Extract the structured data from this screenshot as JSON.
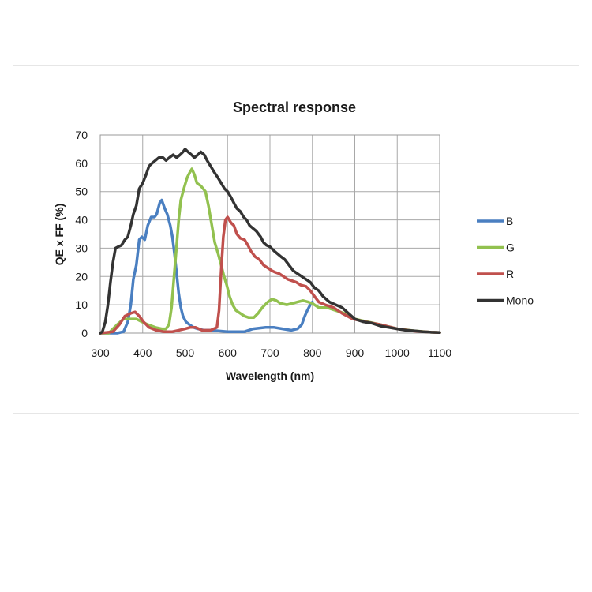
{
  "chart_data": {
    "type": "line",
    "title": "Spectral response",
    "xlabel": "Wavelength (nm)",
    "ylabel": "QE x FF (%)",
    "xlim": [
      300,
      1100
    ],
    "ylim": [
      0,
      70
    ],
    "xticks": [
      300,
      400,
      500,
      600,
      700,
      800,
      900,
      1000,
      1100
    ],
    "yticks": [
      0,
      10,
      20,
      30,
      40,
      50,
      60,
      70
    ],
    "grid": true,
    "legend_position": "right",
    "series": [
      {
        "name": "B",
        "color": "#4a7fc1",
        "points": [
          [
            300,
            0
          ],
          [
            340,
            0
          ],
          [
            355,
            0.5
          ],
          [
            365,
            4
          ],
          [
            372,
            10
          ],
          [
            378,
            19
          ],
          [
            385,
            24
          ],
          [
            392,
            33
          ],
          [
            398,
            34
          ],
          [
            405,
            33
          ],
          [
            412,
            38
          ],
          [
            420,
            41
          ],
          [
            428,
            41
          ],
          [
            433,
            42
          ],
          [
            440,
            46
          ],
          [
            445,
            47
          ],
          [
            452,
            44
          ],
          [
            458,
            42
          ],
          [
            465,
            38
          ],
          [
            470,
            34
          ],
          [
            475,
            28
          ],
          [
            480,
            21
          ],
          [
            485,
            14
          ],
          [
            490,
            9
          ],
          [
            495,
            6
          ],
          [
            502,
            4
          ],
          [
            510,
            3
          ],
          [
            520,
            2
          ],
          [
            530,
            1.5
          ],
          [
            545,
            1
          ],
          [
            560,
            1
          ],
          [
            600,
            0.5
          ],
          [
            620,
            0.5
          ],
          [
            640,
            0.5
          ],
          [
            660,
            1.5
          ],
          [
            690,
            2
          ],
          [
            710,
            2
          ],
          [
            730,
            1.5
          ],
          [
            750,
            1
          ],
          [
            765,
            1.5
          ],
          [
            775,
            3
          ],
          [
            782,
            6
          ],
          [
            788,
            8
          ],
          [
            795,
            10
          ],
          [
            800,
            11
          ]
        ]
      },
      {
        "name": "G",
        "color": "#92c14f",
        "points": [
          [
            300,
            0
          ],
          [
            320,
            0
          ],
          [
            340,
            3
          ],
          [
            355,
            5
          ],
          [
            372,
            5
          ],
          [
            385,
            5
          ],
          [
            398,
            4
          ],
          [
            412,
            3
          ],
          [
            430,
            2
          ],
          [
            445,
            1.5
          ],
          [
            455,
            1.5
          ],
          [
            462,
            3
          ],
          [
            468,
            9
          ],
          [
            474,
            20
          ],
          [
            480,
            31
          ],
          [
            485,
            40
          ],
          [
            490,
            47
          ],
          [
            497,
            51
          ],
          [
            505,
            55
          ],
          [
            512,
            57
          ],
          [
            516,
            58
          ],
          [
            522,
            56
          ],
          [
            528,
            53
          ],
          [
            537,
            52
          ],
          [
            548,
            50
          ],
          [
            555,
            45
          ],
          [
            562,
            39
          ],
          [
            570,
            32
          ],
          [
            578,
            28
          ],
          [
            585,
            24
          ],
          [
            592,
            20
          ],
          [
            598,
            17
          ],
          [
            605,
            13
          ],
          [
            612,
            10
          ],
          [
            620,
            8
          ],
          [
            630,
            7
          ],
          [
            640,
            6
          ],
          [
            650,
            5.5
          ],
          [
            662,
            5.5
          ],
          [
            672,
            7
          ],
          [
            682,
            9
          ],
          [
            695,
            11
          ],
          [
            705,
            12
          ],
          [
            715,
            11.5
          ],
          [
            725,
            10.5
          ],
          [
            740,
            10
          ],
          [
            752,
            10.5
          ],
          [
            765,
            11
          ],
          [
            778,
            11.5
          ],
          [
            790,
            11
          ],
          [
            800,
            10.5
          ],
          [
            815,
            9
          ],
          [
            835,
            9
          ],
          [
            855,
            8
          ],
          [
            875,
            7
          ],
          [
            900,
            5
          ],
          [
            930,
            4
          ],
          [
            960,
            3
          ],
          [
            1000,
            1.5
          ],
          [
            1040,
            0.8
          ],
          [
            1080,
            0.3
          ],
          [
            1100,
            0.2
          ]
        ]
      },
      {
        "name": "R",
        "color": "#c0504d",
        "points": [
          [
            300,
            0
          ],
          [
            330,
            0.5
          ],
          [
            345,
            3
          ],
          [
            358,
            6
          ],
          [
            372,
            7
          ],
          [
            382,
            7.5
          ],
          [
            392,
            6
          ],
          [
            402,
            4
          ],
          [
            415,
            2
          ],
          [
            432,
            1
          ],
          [
            450,
            0.5
          ],
          [
            470,
            0.5
          ],
          [
            485,
            1
          ],
          [
            500,
            1.5
          ],
          [
            512,
            2
          ],
          [
            525,
            2
          ],
          [
            540,
            1
          ],
          [
            560,
            1
          ],
          [
            575,
            2
          ],
          [
            580,
            8
          ],
          [
            585,
            22
          ],
          [
            590,
            34
          ],
          [
            595,
            40
          ],
          [
            600,
            41
          ],
          [
            608,
            39
          ],
          [
            615,
            38
          ],
          [
            622,
            35
          ],
          [
            630,
            33.5
          ],
          [
            640,
            33
          ],
          [
            648,
            31
          ],
          [
            655,
            29
          ],
          [
            665,
            27
          ],
          [
            675,
            26
          ],
          [
            685,
            24
          ],
          [
            695,
            23
          ],
          [
            705,
            22
          ],
          [
            712,
            21.5
          ],
          [
            722,
            21
          ],
          [
            732,
            20
          ],
          [
            742,
            19
          ],
          [
            752,
            18.5
          ],
          [
            762,
            18
          ],
          [
            772,
            17
          ],
          [
            785,
            16.5
          ],
          [
            795,
            15
          ],
          [
            805,
            13
          ],
          [
            815,
            11
          ],
          [
            830,
            10
          ],
          [
            850,
            9
          ],
          [
            870,
            7
          ],
          [
            895,
            5
          ],
          [
            925,
            4
          ],
          [
            960,
            3
          ],
          [
            1000,
            1.5
          ],
          [
            1040,
            0.7
          ],
          [
            1080,
            0.3
          ],
          [
            1100,
            0.2
          ]
        ]
      },
      {
        "name": "Mono",
        "color": "#333333",
        "points": [
          [
            300,
            0
          ],
          [
            305,
            0.5
          ],
          [
            312,
            4
          ],
          [
            318,
            10
          ],
          [
            324,
            18
          ],
          [
            330,
            25
          ],
          [
            336,
            30
          ],
          [
            342,
            30.5
          ],
          [
            350,
            31
          ],
          [
            358,
            33
          ],
          [
            365,
            34
          ],
          [
            372,
            38
          ],
          [
            378,
            42
          ],
          [
            385,
            45
          ],
          [
            392,
            51
          ],
          [
            400,
            53
          ],
          [
            408,
            56
          ],
          [
            415,
            59
          ],
          [
            422,
            60
          ],
          [
            430,
            61
          ],
          [
            438,
            62
          ],
          [
            448,
            62
          ],
          [
            455,
            61
          ],
          [
            463,
            62
          ],
          [
            472,
            63
          ],
          [
            480,
            62
          ],
          [
            488,
            63
          ],
          [
            495,
            64
          ],
          [
            500,
            65
          ],
          [
            507,
            64
          ],
          [
            515,
            63
          ],
          [
            522,
            62
          ],
          [
            530,
            63
          ],
          [
            537,
            64
          ],
          [
            545,
            63
          ],
          [
            552,
            61
          ],
          [
            560,
            59
          ],
          [
            568,
            57
          ],
          [
            577,
            55
          ],
          [
            585,
            53
          ],
          [
            593,
            51
          ],
          [
            600,
            50
          ],
          [
            608,
            48
          ],
          [
            615,
            46
          ],
          [
            622,
            44
          ],
          [
            630,
            43
          ],
          [
            638,
            41
          ],
          [
            645,
            40
          ],
          [
            652,
            38
          ],
          [
            660,
            37
          ],
          [
            668,
            36
          ],
          [
            678,
            34
          ],
          [
            685,
            32
          ],
          [
            692,
            31
          ],
          [
            700,
            30.5
          ],
          [
            710,
            29
          ],
          [
            718,
            28
          ],
          [
            726,
            27
          ],
          [
            735,
            26
          ],
          [
            745,
            24
          ],
          [
            755,
            22
          ],
          [
            765,
            21
          ],
          [
            775,
            20
          ],
          [
            785,
            19
          ],
          [
            795,
            18
          ],
          [
            805,
            16
          ],
          [
            815,
            15
          ],
          [
            825,
            13
          ],
          [
            840,
            11
          ],
          [
            855,
            10
          ],
          [
            870,
            9
          ],
          [
            885,
            7
          ],
          [
            900,
            5
          ],
          [
            920,
            4
          ],
          [
            940,
            3.5
          ],
          [
            960,
            2.5
          ],
          [
            980,
            2
          ],
          [
            1000,
            1.5
          ],
          [
            1020,
            1
          ],
          [
            1040,
            0.8
          ],
          [
            1060,
            0.5
          ],
          [
            1080,
            0.3
          ],
          [
            1100,
            0.2
          ]
        ]
      }
    ]
  }
}
